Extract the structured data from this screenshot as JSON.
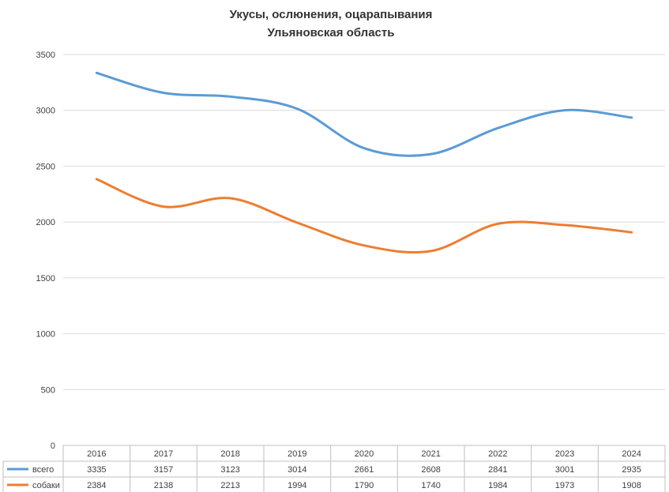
{
  "chart_data": {
    "type": "line",
    "title": "Укусы, ослюнения, оцарапывания",
    "subtitle": "Ульяновская область",
    "categories": [
      "2016",
      "2017",
      "2018",
      "2019",
      "2020",
      "2021",
      "2022",
      "2023",
      "2024"
    ],
    "series": [
      {
        "name": "всего",
        "color": "#5B9BD5",
        "values": [
          3335,
          3157,
          3123,
          3014,
          2661,
          2608,
          2841,
          3001,
          2935
        ]
      },
      {
        "name": "собаки",
        "color": "#ED7D31",
        "values": [
          2384,
          2138,
          2213,
          1994,
          1790,
          1740,
          1984,
          1973,
          1908
        ]
      }
    ],
    "y_ticks": [
      "0",
      "500",
      "1000",
      "1500",
      "2000",
      "2500",
      "3000",
      "3500"
    ],
    "ylim": [
      0,
      3500
    ],
    "grid": true,
    "legend": "data-table",
    "smooth": true
  }
}
